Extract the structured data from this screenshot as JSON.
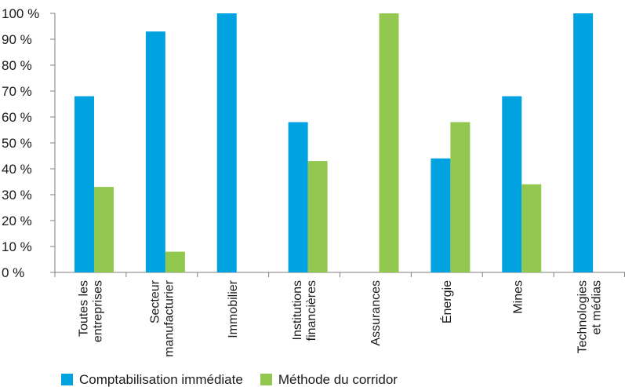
{
  "chart_data": {
    "type": "bar",
    "categories": [
      [
        "Toutes les",
        "entreprises"
      ],
      [
        "Secteur",
        "manufacturier"
      ],
      [
        "Immobilier"
      ],
      [
        "Institutions",
        "financières"
      ],
      [
        "Assurances"
      ],
      [
        "Énergie"
      ],
      [
        "Mines"
      ],
      [
        "Technologies",
        "et médias"
      ]
    ],
    "series": [
      {
        "name": "Comptabilisation immédiate",
        "color": "#00a3e0",
        "values": [
          68,
          93,
          100,
          58,
          0,
          44,
          68,
          100
        ]
      },
      {
        "name": "Méthode du corridor",
        "color": "#92c84f",
        "values": [
          33,
          8,
          0,
          43,
          100,
          58,
          34,
          0
        ]
      }
    ],
    "ylim": [
      0,
      100
    ],
    "yticks": [
      "0 %",
      "10 %",
      "20 %",
      "30 %",
      "40 %",
      "50 %",
      "60 %",
      "70 %",
      "80 %",
      "90 %",
      "100 %"
    ],
    "grid": false,
    "legend_position": "bottom-left"
  }
}
